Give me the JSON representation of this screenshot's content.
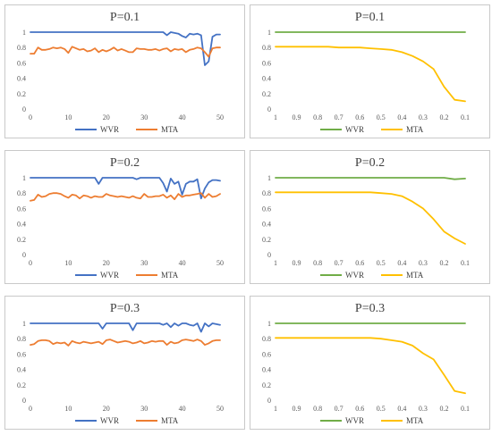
{
  "chart_data": [
    {
      "type": "line",
      "title": "P=0.1",
      "x": [
        0,
        1,
        2,
        3,
        4,
        5,
        6,
        7,
        8,
        9,
        10,
        11,
        12,
        13,
        14,
        15,
        16,
        17,
        18,
        19,
        20,
        21,
        22,
        23,
        24,
        25,
        26,
        27,
        28,
        29,
        30,
        31,
        32,
        33,
        34,
        35,
        36,
        37,
        38,
        39,
        40,
        41,
        42,
        43,
        44,
        45,
        46,
        47,
        48,
        49,
        50
      ],
      "xticks": [
        "0",
        "10",
        "20",
        "30",
        "40",
        "50"
      ],
      "yticks": [
        "0",
        "0.2",
        "0.4",
        "0.6",
        "0.8",
        "1"
      ],
      "ylim": [
        0,
        1.0
      ],
      "legend_position": "bottom",
      "series": [
        {
          "name": "WVR",
          "color": "#4472C4",
          "values": [
            1,
            1,
            1,
            1,
            1,
            1,
            1,
            1,
            1,
            1,
            1,
            1,
            1,
            1,
            1,
            1,
            1,
            1,
            1,
            1,
            1,
            1,
            1,
            1,
            1,
            1,
            1,
            1,
            1,
            1,
            1,
            1,
            1,
            1,
            1,
            1,
            0.96,
            1,
            0.99,
            0.98,
            0.95,
            0.93,
            0.98,
            0.97,
            0.98,
            0.96,
            0.57,
            0.62,
            0.94,
            0.97,
            0.97
          ]
        },
        {
          "name": "MTA",
          "color": "#ED7D31",
          "values": [
            0.72,
            0.72,
            0.8,
            0.77,
            0.77,
            0.78,
            0.8,
            0.79,
            0.8,
            0.78,
            0.73,
            0.81,
            0.79,
            0.77,
            0.78,
            0.75,
            0.76,
            0.79,
            0.74,
            0.77,
            0.75,
            0.77,
            0.8,
            0.76,
            0.78,
            0.76,
            0.74,
            0.74,
            0.79,
            0.78,
            0.78,
            0.77,
            0.77,
            0.78,
            0.76,
            0.78,
            0.79,
            0.75,
            0.78,
            0.77,
            0.78,
            0.74,
            0.77,
            0.78,
            0.8,
            0.79,
            0.74,
            0.68,
            0.79,
            0.8,
            0.8
          ]
        }
      ]
    },
    {
      "type": "line",
      "title": "P=0.1",
      "categories": [
        "1",
        "0.9",
        "0.8",
        "0.7",
        "0.6",
        "0.5",
        "0.4",
        "0.3",
        "0.2",
        "0.1"
      ],
      "x": [
        1,
        0.95,
        0.9,
        0.85,
        0.8,
        0.75,
        0.7,
        0.65,
        0.6,
        0.55,
        0.5,
        0.45,
        0.4,
        0.35,
        0.3,
        0.25,
        0.2,
        0.15,
        0.1
      ],
      "yticks": [
        "0",
        "0.2",
        "0.4",
        "0.6",
        "0.8",
        "1"
      ],
      "ylim": [
        0,
        1.0
      ],
      "legend_position": "bottom",
      "series": [
        {
          "name": "WVR",
          "color": "#70AD47",
          "values": [
            1,
            1,
            1,
            1,
            1,
            1,
            1,
            1,
            1,
            1,
            1,
            1,
            1,
            1,
            1,
            1,
            1,
            1,
            1
          ]
        },
        {
          "name": "MTA",
          "color": "#FFC000",
          "values": [
            0.81,
            0.81,
            0.81,
            0.81,
            0.81,
            0.81,
            0.8,
            0.8,
            0.8,
            0.79,
            0.78,
            0.77,
            0.74,
            0.69,
            0.62,
            0.52,
            0.29,
            0.12,
            0.1
          ]
        }
      ]
    },
    {
      "type": "line",
      "title": "P=0.2",
      "x": [
        0,
        1,
        2,
        3,
        4,
        5,
        6,
        7,
        8,
        9,
        10,
        11,
        12,
        13,
        14,
        15,
        16,
        17,
        18,
        19,
        20,
        21,
        22,
        23,
        24,
        25,
        26,
        27,
        28,
        29,
        30,
        31,
        32,
        33,
        34,
        35,
        36,
        37,
        38,
        39,
        40,
        41,
        42,
        43,
        44,
        45,
        46,
        47,
        48,
        49,
        50
      ],
      "xticks": [
        "0",
        "10",
        "20",
        "30",
        "40",
        "50"
      ],
      "yticks": [
        "0",
        "0.2",
        "0.4",
        "0.6",
        "0.8",
        "1"
      ],
      "ylim": [
        0,
        1.0
      ],
      "legend_position": "bottom",
      "series": [
        {
          "name": "WVR",
          "color": "#4472C4",
          "values": [
            1,
            1,
            1,
            1,
            1,
            1,
            1,
            1,
            1,
            1,
            1,
            1,
            1,
            1,
            1,
            1,
            1,
            1,
            0.92,
            1,
            1,
            1,
            1,
            1,
            1,
            1,
            1,
            1,
            0.98,
            1,
            1,
            1,
            1,
            1,
            1,
            0.93,
            0.82,
            0.99,
            0.92,
            0.95,
            0.78,
            0.92,
            0.95,
            0.95,
            0.98,
            0.73,
            0.86,
            0.94,
            0.97,
            0.97,
            0.96
          ]
        },
        {
          "name": "MTA",
          "color": "#ED7D31",
          "values": [
            0.7,
            0.71,
            0.78,
            0.75,
            0.76,
            0.79,
            0.8,
            0.8,
            0.79,
            0.76,
            0.74,
            0.78,
            0.77,
            0.73,
            0.77,
            0.76,
            0.74,
            0.76,
            0.75,
            0.75,
            0.79,
            0.77,
            0.76,
            0.75,
            0.76,
            0.75,
            0.74,
            0.76,
            0.74,
            0.73,
            0.79,
            0.75,
            0.75,
            0.76,
            0.76,
            0.78,
            0.74,
            0.77,
            0.72,
            0.79,
            0.75,
            0.77,
            0.77,
            0.78,
            0.79,
            0.8,
            0.74,
            0.79,
            0.75,
            0.76,
            0.79
          ]
        }
      ]
    },
    {
      "type": "line",
      "title": "P=0.2",
      "categories": [
        "1",
        "0.9",
        "0.8",
        "0.7",
        "0.6",
        "0.5",
        "0.4",
        "0.3",
        "0.2",
        "0.1"
      ],
      "x": [
        1,
        0.95,
        0.9,
        0.85,
        0.8,
        0.75,
        0.7,
        0.65,
        0.6,
        0.55,
        0.5,
        0.45,
        0.4,
        0.35,
        0.3,
        0.25,
        0.2,
        0.15,
        0.1
      ],
      "yticks": [
        "0",
        "0.2",
        "0.4",
        "0.6",
        "0.8",
        "1"
      ],
      "ylim": [
        0,
        1.0
      ],
      "legend_position": "bottom",
      "series": [
        {
          "name": "WVR",
          "color": "#70AD47",
          "values": [
            1,
            1,
            1,
            1,
            1,
            1,
            1,
            1,
            1,
            1,
            1,
            1,
            1,
            1,
            1,
            1,
            1,
            0.98,
            0.99
          ]
        },
        {
          "name": "MTA",
          "color": "#FFC000",
          "values": [
            0.81,
            0.81,
            0.81,
            0.81,
            0.81,
            0.81,
            0.81,
            0.81,
            0.81,
            0.81,
            0.8,
            0.79,
            0.76,
            0.69,
            0.6,
            0.46,
            0.3,
            0.21,
            0.14
          ]
        }
      ]
    },
    {
      "type": "line",
      "title": "P=0.3",
      "x": [
        0,
        1,
        2,
        3,
        4,
        5,
        6,
        7,
        8,
        9,
        10,
        11,
        12,
        13,
        14,
        15,
        16,
        17,
        18,
        19,
        20,
        21,
        22,
        23,
        24,
        25,
        26,
        27,
        28,
        29,
        30,
        31,
        32,
        33,
        34,
        35,
        36,
        37,
        38,
        39,
        40,
        41,
        42,
        43,
        44,
        45,
        46,
        47,
        48,
        49,
        50
      ],
      "xticks": [
        "0",
        "10",
        "20",
        "30",
        "40",
        "50"
      ],
      "yticks": [
        "0",
        "0.2",
        "0.4",
        "0.6",
        "0.8",
        "1"
      ],
      "ylim": [
        0,
        1.0
      ],
      "legend_position": "bottom",
      "series": [
        {
          "name": "WVR",
          "color": "#4472C4",
          "values": [
            1,
            1,
            1,
            1,
            1,
            1,
            1,
            1,
            1,
            1,
            1,
            1,
            1,
            1,
            1,
            1,
            1,
            1,
            1,
            0.93,
            1,
            1,
            1,
            1,
            1,
            1,
            1,
            0.91,
            1,
            1,
            1,
            1,
            1,
            1,
            1,
            0.98,
            1,
            0.95,
            1,
            0.97,
            1,
            1,
            0.98,
            0.97,
            1,
            0.89,
            1,
            0.96,
            1,
            0.99,
            0.98
          ]
        },
        {
          "name": "MTA",
          "color": "#ED7D31",
          "values": [
            0.72,
            0.73,
            0.77,
            0.78,
            0.78,
            0.77,
            0.73,
            0.75,
            0.74,
            0.75,
            0.71,
            0.77,
            0.75,
            0.74,
            0.76,
            0.75,
            0.74,
            0.75,
            0.76,
            0.73,
            0.78,
            0.79,
            0.77,
            0.75,
            0.76,
            0.77,
            0.76,
            0.74,
            0.75,
            0.77,
            0.74,
            0.75,
            0.77,
            0.76,
            0.77,
            0.77,
            0.72,
            0.76,
            0.74,
            0.75,
            0.78,
            0.79,
            0.78,
            0.77,
            0.79,
            0.77,
            0.72,
            0.74,
            0.77,
            0.78,
            0.78
          ]
        }
      ]
    },
    {
      "type": "line",
      "title": "P=0.3",
      "categories": [
        "1",
        "0.9",
        "0.8",
        "0.7",
        "0.6",
        "0.5",
        "0.4",
        "0.3",
        "0.2",
        "0.1"
      ],
      "x": [
        1,
        0.95,
        0.9,
        0.85,
        0.8,
        0.75,
        0.7,
        0.65,
        0.6,
        0.55,
        0.5,
        0.45,
        0.4,
        0.35,
        0.3,
        0.25,
        0.2,
        0.15,
        0.1
      ],
      "yticks": [
        "0",
        "0.2",
        "0.4",
        "0.6",
        "0.8",
        "1"
      ],
      "ylim": [
        0,
        1.0
      ],
      "legend_position": "bottom",
      "series": [
        {
          "name": "WVR",
          "color": "#70AD47",
          "values": [
            1,
            1,
            1,
            1,
            1,
            1,
            1,
            1,
            1,
            1,
            1,
            1,
            1,
            1,
            1,
            1,
            1,
            1,
            1
          ]
        },
        {
          "name": "MTA",
          "color": "#FFC000",
          "values": [
            0.81,
            0.81,
            0.81,
            0.81,
            0.81,
            0.81,
            0.81,
            0.81,
            0.81,
            0.81,
            0.8,
            0.78,
            0.76,
            0.71,
            0.61,
            0.53,
            0.33,
            0.12,
            0.09
          ]
        }
      ]
    }
  ]
}
